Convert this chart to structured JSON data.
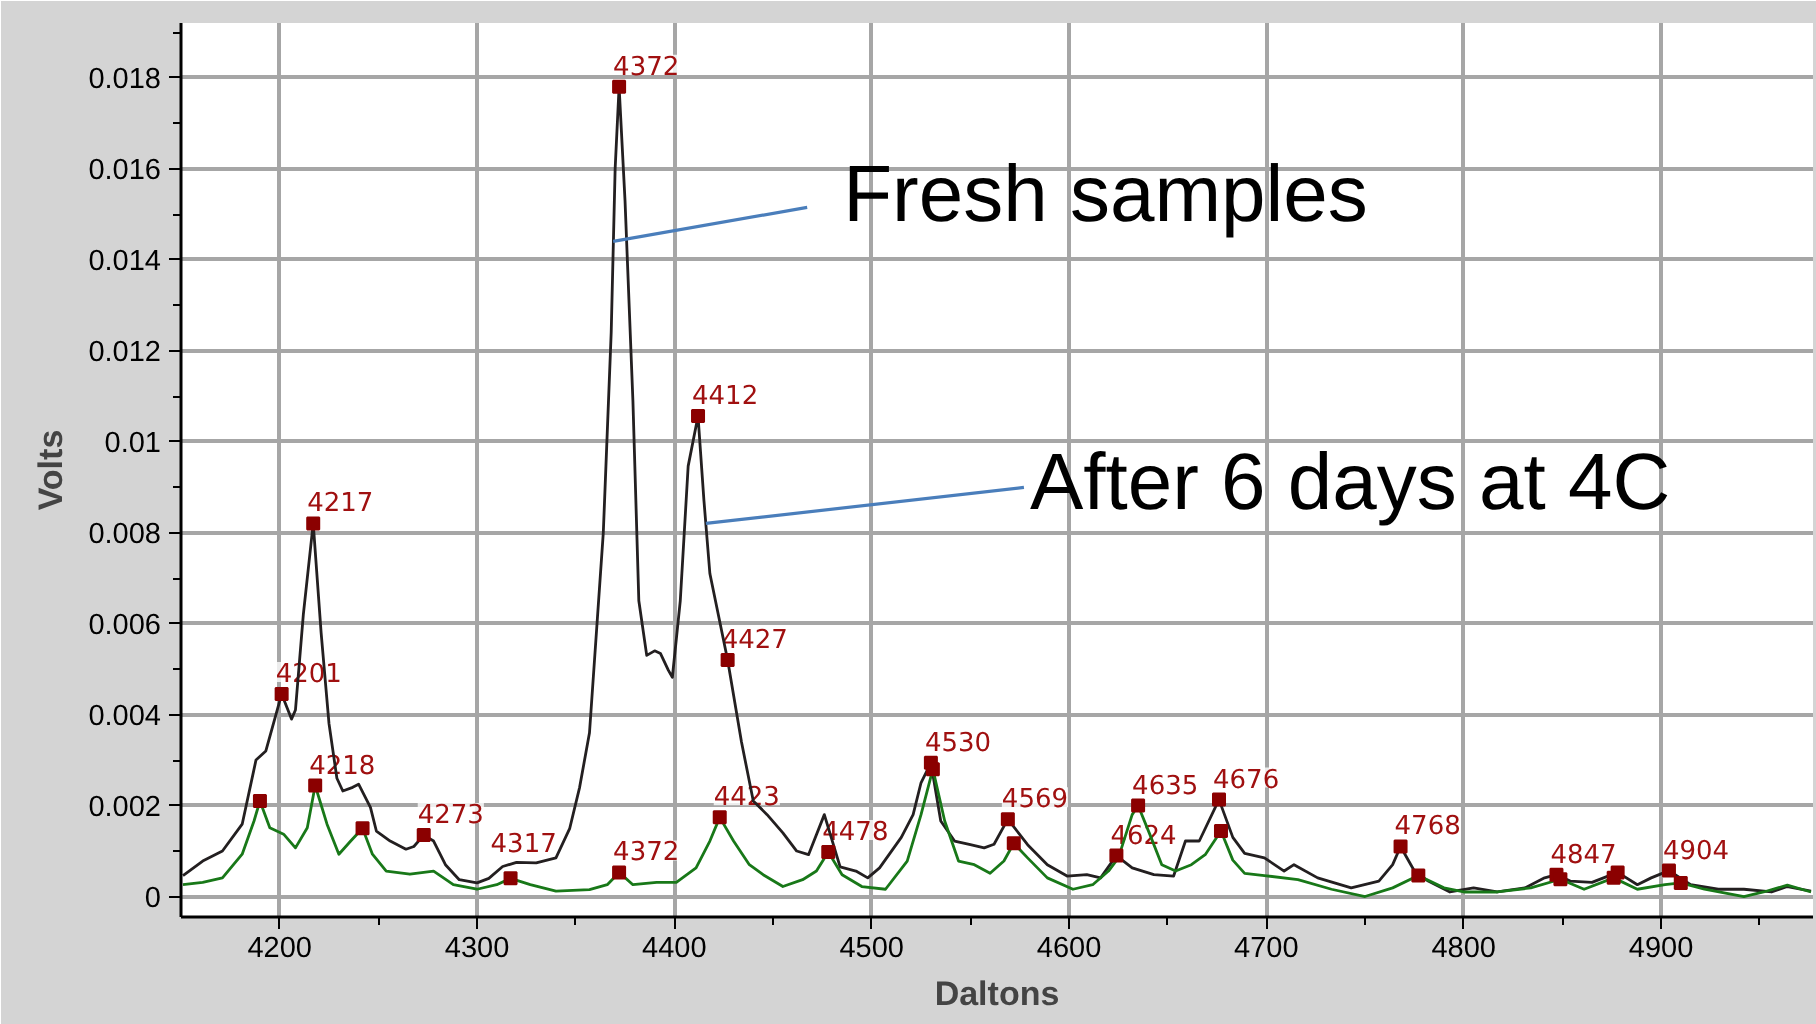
{
  "chart_data": {
    "type": "line",
    "xlabel": "Daltons",
    "ylabel": "Volts",
    "xlim": [
      4150,
      4977
    ],
    "ylim": [
      -0.00045,
      0.0192
    ],
    "xticks": [
      4200,
      {
        "value": 4250,
        "label": null
      },
      4300,
      {
        "value": 4350,
        "label": null
      },
      4400,
      {
        "value": 4450,
        "label": null
      },
      4500,
      {
        "value": 4550,
        "label": null
      },
      4600,
      {
        "value": 4650,
        "label": null
      },
      4700,
      {
        "value": 4750,
        "label": null
      },
      4800,
      {
        "value": 4850,
        "label": null
      },
      4900,
      {
        "value": 4950,
        "label": null
      }
    ],
    "yticks": [
      0,
      {
        "value": 0.001,
        "label": null
      },
      0.002,
      {
        "value": 0.003,
        "label": null
      },
      0.004,
      {
        "value": 0.005,
        "label": null
      },
      0.006,
      {
        "value": 0.007,
        "label": null
      },
      0.008,
      {
        "value": 0.009,
        "label": null
      },
      0.01,
      {
        "value": 0.011,
        "label": null
      },
      0.012,
      {
        "value": 0.013,
        "label": null
      },
      0.014,
      {
        "value": 0.015,
        "label": null
      },
      0.016,
      {
        "value": 0.017,
        "label": null
      },
      0.018,
      {
        "value": 0.019,
        "label": null
      }
    ],
    "grid": true,
    "series": [
      {
        "color": "#231f20",
        "x": [
          4151,
          4161,
          4171,
          4181,
          4188,
          4193,
          4201,
          4206,
          4208,
          4212,
          4217,
          4221,
          4225,
          4229,
          4232,
          4237,
          4240,
          4246,
          4249,
          4256,
          4264,
          4268,
          4273,
          4278,
          4284,
          4291,
          4300,
          4306,
          4313,
          4320,
          4330,
          4340,
          4347,
          4352,
          4357,
          4364,
          4368,
          4370,
          4372,
          4375,
          4379,
          4382,
          4386,
          4390,
          4393,
          4397,
          4399,
          4403,
          4407,
          4412,
          4415,
          4418,
          4427,
          4434,
          4440,
          4447,
          4455,
          4462,
          4468,
          4476,
          4484,
          4492,
          4498,
          4504,
          4515,
          4521,
          4525,
          4530,
          4535,
          4542,
          4550,
          4557,
          4562,
          4569,
          4579,
          4589,
          4599,
          4609,
          4616,
          4624,
          4632,
          4643,
          4653,
          4659,
          4666,
          4676,
          4683,
          4689,
          4699,
          4709,
          4714,
          4726,
          4743,
          4757,
          4764,
          4768,
          4775,
          4782,
          4793,
          4805,
          4817,
          4831,
          4841,
          4847,
          4854,
          4865,
          4878,
          4888,
          4895,
          4904,
          4915,
          4929,
          4942,
          4956,
          4964,
          4976
        ],
        "values": [
          0.00046,
          0.00078,
          0.001,
          0.00159,
          0.003,
          0.0032,
          0.00445,
          0.0039,
          0.0041,
          0.0062,
          0.0082,
          0.0058,
          0.0038,
          0.0026,
          0.00232,
          0.0024,
          0.00247,
          0.00196,
          0.00144,
          0.00122,
          0.00104,
          0.0011,
          0.00135,
          0.00122,
          0.0007,
          0.00037,
          0.0003,
          0.0004,
          0.00066,
          0.00075,
          0.00074,
          0.00085,
          0.0015,
          0.0024,
          0.0036,
          0.008,
          0.0124,
          0.016,
          0.0178,
          0.0153,
          0.0109,
          0.0065,
          0.0053,
          0.0054,
          0.00534,
          0.00497,
          0.00482,
          0.0065,
          0.00946,
          0.01056,
          0.0087,
          0.0071,
          0.0052,
          0.0034,
          0.0021,
          0.0018,
          0.0014,
          0.001,
          0.00092,
          0.0018,
          0.00065,
          0.00056,
          0.00041,
          0.00063,
          0.0013,
          0.0018,
          0.0025,
          0.00294,
          0.00166,
          0.00122,
          0.00114,
          0.00107,
          0.00115,
          0.0017,
          0.00114,
          0.0007,
          0.00045,
          0.00048,
          0.00041,
          0.0009,
          0.00063,
          0.00048,
          0.00045,
          0.00122,
          0.00122,
          0.00213,
          0.0013,
          0.00095,
          0.00085,
          0.00056,
          0.0007,
          0.00041,
          0.00019,
          0.00034,
          0.0007,
          0.0011,
          0.00056,
          0.00034,
          0.0001,
          0.00019,
          0.0001,
          0.00019,
          0.00041,
          0.00048,
          0.00034,
          0.00031,
          0.00053,
          0.00026,
          0.00041,
          0.00057,
          0.00026,
          0.00016,
          0.00016,
          0.0001,
          0.00022,
          0.00012
        ]
      },
      {
        "color": "#187818",
        "x": [
          4151,
          4161,
          4171,
          4181,
          4187,
          4190,
          4195,
          4202,
          4208,
          4214,
          4218,
          4224,
          4230,
          4236,
          4242,
          4247,
          4254,
          4266,
          4278,
          4288,
          4300,
          4310,
          4317,
          4327,
          4340,
          4357,
          4366,
          4372,
          4379,
          4391,
          4401,
          4411,
          4418,
          4423,
          4430,
          4438,
          4445,
          4455,
          4465,
          4472,
          4478,
          4485,
          4495,
          4507,
          4518,
          4525,
          4531,
          4537,
          4544,
          4552,
          4560,
          4567,
          4572,
          4579,
          4589,
          4602,
          4612,
          4620,
          4625,
          4632,
          4635,
          4641,
          4647,
          4654,
          4662,
          4669,
          4677,
          4683,
          4689,
          4699,
          4716,
          4733,
          4750,
          4764,
          4777,
          4790,
          4800,
          4817,
          4834,
          4849,
          4861,
          4876,
          4888,
          4902,
          4910,
          4922,
          4942,
          4952,
          4964,
          4976
        ],
        "values": [
          0.00026,
          0.00031,
          0.00041,
          0.00093,
          0.00166,
          0.0021,
          0.00151,
          0.00137,
          0.00107,
          0.00151,
          0.00244,
          0.00159,
          0.00093,
          0.00122,
          0.0015,
          0.00093,
          0.00056,
          0.00049,
          0.00056,
          0.00026,
          0.00016,
          0.00026,
          0.0004,
          0.00026,
          0.00012,
          0.00015,
          0.00026,
          0.00053,
          0.00026,
          0.00031,
          0.00031,
          0.00063,
          0.00122,
          0.00174,
          0.00122,
          0.0007,
          0.00048,
          0.00022,
          0.00037,
          0.00056,
          0.00098,
          0.00048,
          0.00022,
          0.00016,
          0.00078,
          0.0018,
          0.0028,
          0.00166,
          0.00078,
          0.0007,
          0.00051,
          0.00078,
          0.00117,
          0.00085,
          0.00041,
          0.00016,
          0.00026,
          0.00056,
          0.00085,
          0.0018,
          0.002,
          0.00136,
          0.0007,
          0.00056,
          0.0007,
          0.00092,
          0.00144,
          0.0008,
          0.00051,
          0.00046,
          0.00037,
          0.00016,
          0,
          0.00019,
          0.00046,
          0.00019,
          0.0001,
          0.0001,
          0.00019,
          0.00038,
          0.00016,
          0.00041,
          0.00016,
          0.00026,
          0.0003,
          0.00016,
          0,
          0.0001,
          0.00025,
          0.0001
        ]
      },
      {
        "type": "scatter",
        "marker": "square",
        "color": "#8b0000",
        "x": [
          4190,
          4201,
          4217,
          4218,
          4242,
          4273,
          4317,
          4372,
          4372,
          4412,
          4423,
          4427,
          4478,
          4530,
          4531,
          4569,
          4572,
          4624,
          4635,
          4676,
          4677,
          4768,
          4777,
          4847,
          4849,
          4876,
          4878,
          4904,
          4910
        ],
        "values": [
          0.0021,
          0.00445,
          0.0082,
          0.00244,
          0.0015,
          0.00135,
          0.0004,
          0.0178,
          0.00053,
          0.01056,
          0.00174,
          0.0052,
          0.00098,
          0.00294,
          0.0028,
          0.0017,
          0.00117,
          0.0009,
          0.002,
          0.00213,
          0.00144,
          0.0011,
          0.00046,
          0.00048,
          0.00038,
          0.00041,
          0.00053,
          0.00057,
          0.0003
        ]
      }
    ],
    "annotations": [
      {
        "text": "Fresh samples",
        "x": 4369,
        "y": 0.0144
      },
      {
        "text": "After 6 days at 4C",
        "x": 4416,
        "y": 0.0082
      },
      {
        "text": "4201",
        "x": 4201,
        "y": 0.00445
      },
      {
        "text": "4217",
        "x": 4217,
        "y": 0.0082
      },
      {
        "text": "4218",
        "x": 4218,
        "y": 0.00244
      },
      {
        "text": "4273",
        "x": 4273,
        "y": 0.00135
      },
      {
        "text": "4317",
        "x": 4317,
        "y": 0.0004
      },
      {
        "text": "4372",
        "x": 4372,
        "y": 0.0178
      },
      {
        "text": "4372",
        "x": 4372,
        "y": 0.00053
      },
      {
        "text": "4412",
        "x": 4412,
        "y": 0.01056
      },
      {
        "text": "4423",
        "x": 4423,
        "y": 0.00174
      },
      {
        "text": "4427",
        "x": 4427,
        "y": 0.0052
      },
      {
        "text": "4478",
        "x": 4478,
        "y": 0.00098
      },
      {
        "text": "4530",
        "x": 4530,
        "y": 0.00294
      },
      {
        "text": "4569",
        "x": 4569,
        "y": 0.0017
      },
      {
        "text": "4624",
        "x": 4624,
        "y": 0.0009
      },
      {
        "text": "4635",
        "x": 4635,
        "y": 0.002
      },
      {
        "text": "4676",
        "x": 4676,
        "y": 0.00213
      },
      {
        "text": "4768",
        "x": 4768,
        "y": 0.0011
      },
      {
        "text": "4847",
        "x": 4847,
        "y": 0.00048
      },
      {
        "text": "4904",
        "x": 4904,
        "y": 0.00057
      }
    ]
  }
}
